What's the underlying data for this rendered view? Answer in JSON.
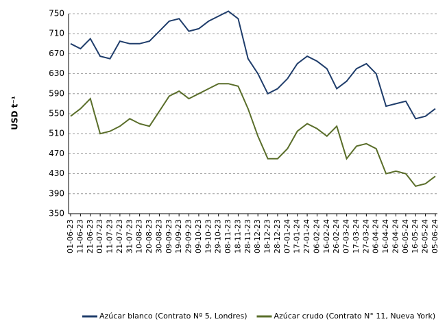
{
  "chart_data": {
    "type": "line",
    "y_label": "USD t⁻¹",
    "categories": [
      "01-06-23",
      "11-06-23",
      "21-06-23",
      "01-07-23",
      "11-07-23",
      "21-07-23",
      "31-07-23",
      "10-08-23",
      "20-08-23",
      "30-08-23",
      "09-09-23",
      "19-09-23",
      "29-09-23",
      "09-10-23",
      "19-10-23",
      "29-10-23",
      "08-11-23",
      "18-11-23",
      "28-11-23",
      "08-12-23",
      "18-12-23",
      "28-12-23",
      "07-01-24",
      "17-01-24",
      "27-01-24",
      "06-02-24",
      "16-02-24",
      "26-02-24",
      "07-03-24",
      "17-03-24",
      "27-03-24",
      "06-04-24",
      "16-04-24",
      "26-04-24",
      "06-05-24",
      "16-05-24",
      "26-05-24",
      "05-06-24"
    ],
    "series": [
      {
        "name": "Azúcar blanco (Contrato Nº 5, Londres)",
        "color": "#1f3d6b",
        "values": [
          690,
          680,
          700,
          665,
          660,
          695,
          690,
          690,
          695,
          715,
          735,
          740,
          715,
          720,
          735,
          745,
          755,
          740,
          660,
          630,
          590,
          600,
          620,
          650,
          665,
          655,
          640,
          600,
          615,
          640,
          650,
          630,
          565,
          570,
          575,
          540,
          545,
          560
        ]
      },
      {
        "name": "Azúcar crudo (Contrato N° 11, Nueva York)",
        "color": "#5a6e2a",
        "values": [
          545,
          560,
          580,
          510,
          515,
          525,
          540,
          530,
          525,
          555,
          585,
          595,
          580,
          590,
          600,
          610,
          610,
          605,
          560,
          505,
          460,
          460,
          480,
          515,
          530,
          520,
          505,
          525,
          460,
          485,
          490,
          480,
          430,
          435,
          430,
          405,
          410,
          425
        ]
      }
    ],
    "ylim": [
      350,
      750
    ],
    "yticks": [
      350,
      390,
      430,
      470,
      510,
      550,
      590,
      630,
      670,
      710,
      750
    ],
    "grid": true,
    "legend": "bottom"
  }
}
